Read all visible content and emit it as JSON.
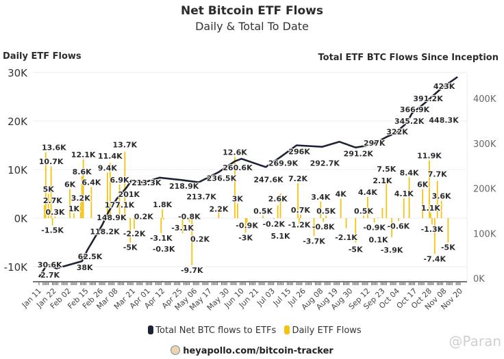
{
  "chart_data": {
    "type": "bar+line",
    "title": "Net Bitcoin ETF Flows",
    "subtitle": "Daily & Total To Date",
    "ylabel_left": "Daily ETF Flows",
    "ylabel_right": "Total ETF BTC Flows Since Inception",
    "ylim_left": [
      -13,
      30
    ],
    "yticks_left": [
      "30K",
      "20K",
      "10K",
      "0K",
      "-10K"
    ],
    "yticks_left_values": [
      30,
      20,
      10,
      0,
      -10
    ],
    "ylim_right": [
      0,
      460
    ],
    "yticks_right": [
      "400K",
      "300K",
      "200K",
      "100K",
      "0K"
    ],
    "yticks_right_values": [
      400,
      300,
      200,
      100,
      0
    ],
    "grid": true,
    "xticks": [
      "Jan 11",
      "Jan 22",
      "Feb 02",
      "Feb 15",
      "Feb 26",
      "Mar 08",
      "Mar 21",
      "Apr 01",
      "Apr 12",
      "Apr 25",
      "May 06",
      "May 17",
      "May 30",
      "Jun 10",
      "Jun 21",
      "Jul 03",
      "Jul 15",
      "Jul 26",
      "Aug 08",
      "Aug 19",
      "Aug 30",
      "Sep 12",
      "Sep 23",
      "Oct 04",
      "Oct 17",
      "Oct 28",
      "Nov 08",
      "Nov 20"
    ],
    "legend": {
      "position": "bottom",
      "entries": [
        {
          "name": "Total Net BTC flows to ETFs",
          "color": "#1c2233"
        },
        {
          "name": "Daily ETF Flows",
          "color": "#f5c30f"
        }
      ]
    },
    "series": [
      {
        "name": "Daily ETF Flows",
        "type": "bar",
        "unit": "K BTC",
        "points": [
          {
            "date": "Jan 15",
            "value": 2.7,
            "label": "2.7K"
          },
          {
            "date": "Jan 16",
            "value": 13.6,
            "label": "13.6K"
          },
          {
            "date": "Jan 18",
            "value": 5,
            "label": "5K"
          },
          {
            "date": "Jan 20",
            "value": 10.7,
            "label": "10.7K"
          },
          {
            "date": "Jan 21",
            "value": -1.5,
            "label": "-1.5K"
          },
          {
            "date": "Jan 23",
            "value": 0.3,
            "label": "0.3K"
          },
          {
            "date": "Feb 03",
            "value": 6,
            "label": "6K"
          },
          {
            "date": "Feb 06",
            "value": 1,
            "label": "1K"
          },
          {
            "date": "Feb 11",
            "value": 3.2,
            "label": "3.2K"
          },
          {
            "date": "Feb 12",
            "value": 8.6,
            "label": "8.6K"
          },
          {
            "date": "Feb 13",
            "value": 12.1,
            "label": "12.1K"
          },
          {
            "date": "Feb 19",
            "value": 6.4,
            "label": "6.4K"
          },
          {
            "date": "Mar 02",
            "value": 9.4,
            "label": "9.4K"
          },
          {
            "date": "Mar 04",
            "value": 11.4,
            "label": "11.4K"
          },
          {
            "date": "Mar 11",
            "value": 6.9,
            "label": "6.9K"
          },
          {
            "date": "Mar 15",
            "value": 13.7,
            "label": "13.7K"
          },
          {
            "date": "Mar 19",
            "value": -5,
            "label": "-5K"
          },
          {
            "date": "Mar 22",
            "value": -2.2,
            "label": "-2.2K"
          },
          {
            "date": "Mar 29",
            "value": 0.2,
            "label": "0.2K"
          },
          {
            "date": "Apr 11",
            "value": -3.1,
            "label": "-3.1K"
          },
          {
            "date": "Apr 12",
            "value": 1.8,
            "label": "1.8K"
          },
          {
            "date": "Apr 13",
            "value": -0.3,
            "label": "-0.3K"
          },
          {
            "date": "Apr 27",
            "value": -3.1,
            "label": "-3.1K"
          },
          {
            "date": "May 02",
            "value": -0.8,
            "label": "-0.8K"
          },
          {
            "date": "May 04",
            "value": -9.7,
            "label": "-9.7K"
          },
          {
            "date": "May 10",
            "value": 0.2,
            "label": "0.2K"
          },
          {
            "date": "May 24",
            "value": 2.2,
            "label": "2.2K"
          },
          {
            "date": "Jun 05",
            "value": 12.6,
            "label": "12.6K"
          },
          {
            "date": "Jun 07",
            "value": 3,
            "label": "3K"
          },
          {
            "date": "Jun 13",
            "value": -3,
            "label": "-3K"
          },
          {
            "date": "Jun 14",
            "value": -0.9,
            "label": "-0.9K"
          },
          {
            "date": "Jun 26",
            "value": 0.5,
            "label": "0.5K"
          },
          {
            "date": "Jul 04",
            "value": -0.2,
            "label": "-0.2K"
          },
          {
            "date": "Jul 07",
            "value": 2.6,
            "label": "2.6K"
          },
          {
            "date": "Jul 09",
            "value": 5.1,
            "label": "5.1K"
          },
          {
            "date": "Jul 22",
            "value": 7.2,
            "label": "7.2K"
          },
          {
            "date": "Jul 23",
            "value": -1.2,
            "label": "-1.2K"
          },
          {
            "date": "Jul 24",
            "value": 0.7,
            "label": "0.7K"
          },
          {
            "date": "Aug 03",
            "value": -3.7,
            "label": "-3.7K"
          },
          {
            "date": "Aug 08",
            "value": 3.4,
            "label": "3.4K"
          },
          {
            "date": "Aug 10",
            "value": -0.8,
            "label": "-0.8K"
          },
          {
            "date": "Aug 12",
            "value": 0.5,
            "label": "0.5K"
          },
          {
            "date": "Aug 23",
            "value": 4,
            "label": "4K"
          },
          {
            "date": "Aug 27",
            "value": -2.1,
            "label": "-2.1K"
          },
          {
            "date": "Sep 03",
            "value": -5,
            "label": "-5K"
          },
          {
            "date": "Sep 09",
            "value": 0.5,
            "label": "0.5K"
          },
          {
            "date": "Sep 12",
            "value": 4.4,
            "label": "4.4K"
          },
          {
            "date": "Sep 17",
            "value": -0.9,
            "label": "-0.9K"
          },
          {
            "date": "Sep 20",
            "value": 0.1,
            "label": "0.1K"
          },
          {
            "date": "Sep 23",
            "value": 2.1,
            "label": "2.1K"
          },
          {
            "date": "Sep 26",
            "value": 7.5,
            "label": "7.5K"
          },
          {
            "date": "Sep 30",
            "value": -3.9,
            "label": "-3.9K"
          },
          {
            "date": "Oct 05",
            "value": -0.6,
            "label": "-0.6K"
          },
          {
            "date": "Oct 09",
            "value": 4.1,
            "label": "4.1K"
          },
          {
            "date": "Oct 13",
            "value": 8.4,
            "label": "8.4K"
          },
          {
            "date": "Oct 23",
            "value": 6,
            "label": "6K"
          },
          {
            "date": "Oct 28",
            "value": 11.9,
            "label": "11.9K"
          },
          {
            "date": "Oct 29",
            "value": 1.1,
            "label": "1.1K"
          },
          {
            "date": "Oct 30",
            "value": -1.3,
            "label": "-1.3K"
          },
          {
            "date": "Nov 01",
            "value": -7.4,
            "label": "-7.4K"
          },
          {
            "date": "Nov 03",
            "value": 7.7,
            "label": "7.7K"
          },
          {
            "date": "Nov 06",
            "value": 3.6,
            "label": "3.6K"
          },
          {
            "date": "Nov 11",
            "value": -5,
            "label": "-5K"
          }
        ]
      },
      {
        "name": "Total Net BTC flows to ETFs",
        "type": "line",
        "unit": "K BTC",
        "points": [
          {
            "date": "Jan 11",
            "value": 2.7,
            "label": "2.7K"
          },
          {
            "date": "Jan 17",
            "value": 30.6,
            "label": "30.6K"
          },
          {
            "date": "Jan 24",
            "value": 22
          },
          {
            "date": "Feb 12",
            "value": 38,
            "label": "38K"
          },
          {
            "date": "Feb 16",
            "value": 62.5,
            "label": "62.5K"
          },
          {
            "date": "Feb 27",
            "value": 118.2,
            "label": "118.2K"
          },
          {
            "date": "Mar 03",
            "value": 148.9,
            "label": "148.9K"
          },
          {
            "date": "Mar 09",
            "value": 177.1,
            "label": "177.1K"
          },
          {
            "date": "Mar 16",
            "value": 201,
            "label": "201K"
          },
          {
            "date": "Mar 20",
            "value": 218
          },
          {
            "date": "Mar 29",
            "value": 213.3,
            "label": "213.3K"
          },
          {
            "date": "Apr 10",
            "value": 224
          },
          {
            "date": "Apr 26",
            "value": 218.9,
            "label": "218.9K"
          },
          {
            "date": "May 09",
            "value": 213.7,
            "label": "213.7K"
          },
          {
            "date": "May 24",
            "value": 236.5,
            "label": "236.5K"
          },
          {
            "date": "Jun 05",
            "value": 260.6,
            "label": "260.6K"
          },
          {
            "date": "Jun 10",
            "value": 266
          },
          {
            "date": "Jun 28",
            "value": 247.6,
            "label": "247.6K"
          },
          {
            "date": "Jul 09",
            "value": 269.9,
            "label": "269.9K"
          },
          {
            "date": "Jul 21",
            "value": 296,
            "label": "296K"
          },
          {
            "date": "Aug 09",
            "value": 292.7,
            "label": "292.7K"
          },
          {
            "date": "Aug 22",
            "value": 304
          },
          {
            "date": "Sep 03",
            "value": 291.2,
            "label": "291.2K"
          },
          {
            "date": "Sep 15",
            "value": 297,
            "label": "297K"
          },
          {
            "date": "Sep 27",
            "value": 316
          },
          {
            "date": "Oct 02",
            "value": 322,
            "label": "322K"
          },
          {
            "date": "Oct 11",
            "value": 345.2,
            "label": "345.2K"
          },
          {
            "date": "Oct 15",
            "value": 366.9,
            "label": "366.9K"
          },
          {
            "date": "Oct 25",
            "value": 391.2,
            "label": "391.2K"
          },
          {
            "date": "Nov 06",
            "value": 423,
            "label": "423K"
          },
          {
            "date": "Nov 18",
            "value": 448.3,
            "label": "448.3K"
          }
        ]
      }
    ]
  },
  "source": "heyapollo.com/bitcoin-tracker",
  "watermark": "@Paran"
}
